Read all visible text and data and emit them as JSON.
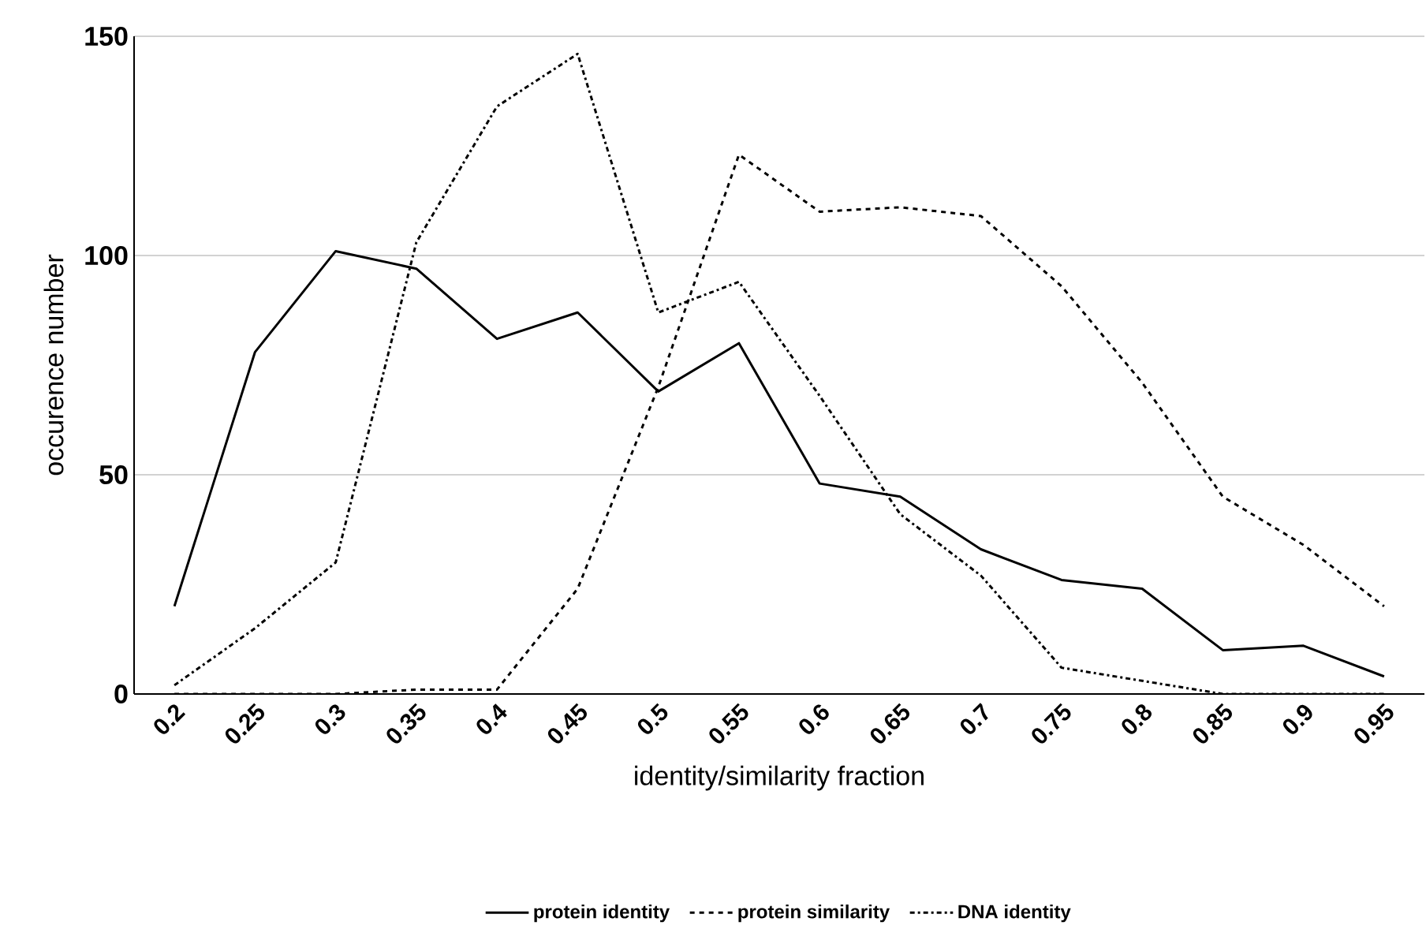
{
  "chart_data": {
    "type": "line",
    "xlabel": "identity/similarity fraction",
    "ylabel": "occurence number",
    "categories": [
      "0.2",
      "0.25",
      "0.3",
      "0.35",
      "0.4",
      "0.45",
      "0.5",
      "0.55",
      "0.6",
      "0.65",
      "0.7",
      "0.75",
      "0.8",
      "0.85",
      "0.9",
      "0.95"
    ],
    "series": [
      {
        "name": "protein identity",
        "color": "#000000",
        "line_style": "solid",
        "values": [
          20,
          78,
          101,
          97,
          81,
          87,
          69,
          80,
          48,
          45,
          33,
          26,
          24,
          10,
          11,
          4
        ]
      },
      {
        "name": "protein similarity",
        "color": "#000000",
        "line_style": "dashed",
        "values": [
          0,
          0,
          0,
          1,
          1,
          24,
          70,
          123,
          110,
          111,
          109,
          93,
          71,
          45,
          34,
          20
        ]
      },
      {
        "name": "DNA identity",
        "color": "#000000",
        "line_style": "dashdot",
        "values": [
          2,
          15,
          30,
          103,
          134,
          146,
          87,
          94,
          68,
          41,
          27,
          6,
          3,
          0,
          0,
          0
        ]
      }
    ],
    "ylim": [
      0,
      150
    ],
    "yticks": [
      0,
      50,
      100,
      150
    ],
    "grid": "y",
    "legend": "bottom",
    "marker": "none"
  }
}
